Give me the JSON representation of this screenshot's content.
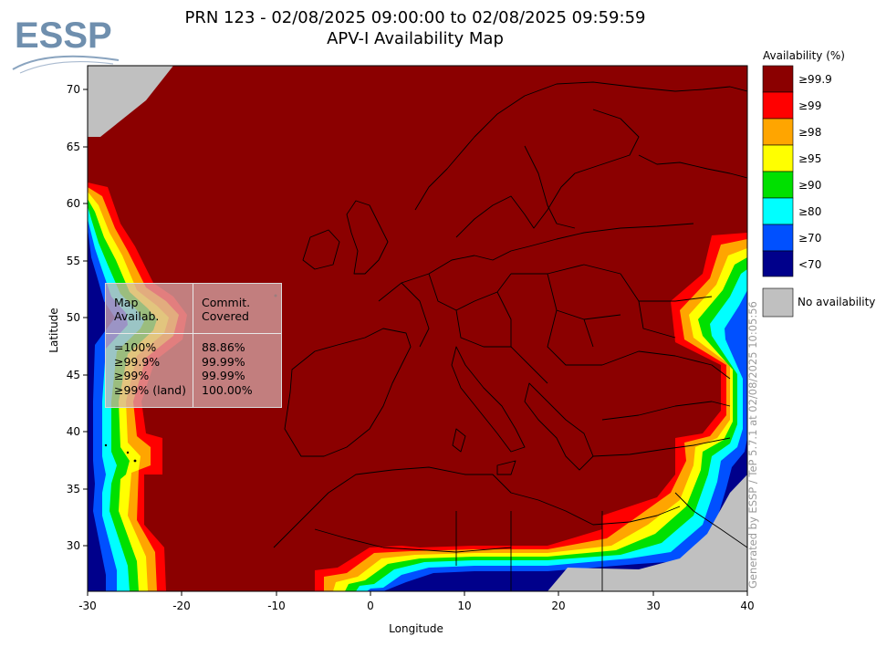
{
  "header": {
    "logo_text": "ESSP",
    "title_line1": "PRN 123 - 02/08/2025 09:00:00 to 02/08/2025 09:59:59",
    "title_line2": "APV-I Availability Map"
  },
  "map": {
    "xlabel": "Longitude",
    "ylabel": "Latitude",
    "x_ticks": [
      "-30",
      "-20",
      "-10",
      "0",
      "10",
      "20",
      "30",
      "40"
    ],
    "y_ticks": [
      "70",
      "65",
      "60",
      "55",
      "50",
      "45",
      "40",
      "35",
      "30"
    ],
    "xlim": [
      -30,
      40
    ],
    "ylim": [
      26,
      72
    ]
  },
  "legend": {
    "title": "Availability (%)",
    "items": [
      {
        "label": "≥99.9",
        "color": "#8b0000"
      },
      {
        "label": "≥99",
        "color": "#ff0000"
      },
      {
        "label": "≥98",
        "color": "#ffa500"
      },
      {
        "label": "≥95",
        "color": "#ffff00"
      },
      {
        "label": "≥90",
        "color": "#00e000"
      },
      {
        "label": "≥80",
        "color": "#00ffff"
      },
      {
        "label": "≥70",
        "color": "#0050ff"
      },
      {
        "label": "<70",
        "color": "#00008b"
      }
    ],
    "no_availability_label": "No availability",
    "no_availability_color": "#c0c0c0"
  },
  "stats_table": {
    "col1_header": [
      "Map",
      "Availab."
    ],
    "col2_header": [
      "Commit.",
      "Covered"
    ],
    "rows": [
      {
        "label": "=100%",
        "value": "88.86%"
      },
      {
        "label": "≥99.9%",
        "value": "99.99%"
      },
      {
        "label": "≥99%",
        "value": "99.99%"
      },
      {
        "label": "≥99% (land)",
        "value": "100.00%"
      }
    ]
  },
  "credit": "Generated by ESSP / TeP 5.7.1 at 02/08/2025 10:05:56"
}
